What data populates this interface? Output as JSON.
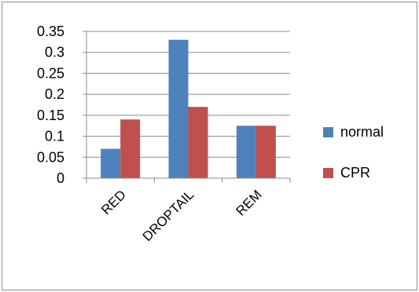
{
  "chart_data": {
    "type": "bar",
    "categories": [
      "RED",
      "DROPTAIL",
      "REM"
    ],
    "series": [
      {
        "name": "normal",
        "values": [
          0.07,
          0.33,
          0.125
        ],
        "color": "#4f81bd"
      },
      {
        "name": "CPR",
        "values": [
          0.14,
          0.17,
          0.125
        ],
        "color": "#c0504d"
      }
    ],
    "yticks": [
      "0",
      "0.05",
      "0.1",
      "0.15",
      "0.2",
      "0.25",
      "0.3",
      "0.35"
    ],
    "ylim": [
      0,
      0.35
    ],
    "grid": true,
    "legend_position": "right",
    "title": "",
    "xlabel": "",
    "ylabel": ""
  }
}
